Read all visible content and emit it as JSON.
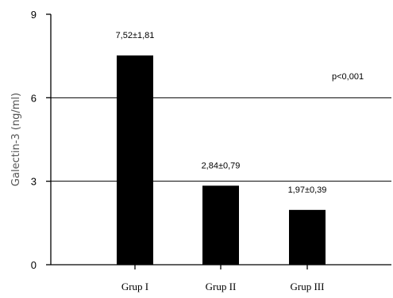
{
  "chart_data": {
    "type": "bar",
    "categories": [
      "Grup I",
      "Grup II",
      "Grup III"
    ],
    "values": [
      7.52,
      2.84,
      1.97
    ],
    "data_labels": [
      "7,52±1,81",
      "2,84±0,79",
      "1,97±0,39"
    ],
    "ylabel": "Galectin-3 (ng/ml)",
    "ylim": [
      0,
      9
    ],
    "yticks": [
      0,
      3,
      6,
      9
    ],
    "yticklabels": [
      "0",
      "3",
      "6",
      "9"
    ],
    "annotation": "p<0,001",
    "grid": true,
    "bar_color": "#000000"
  }
}
